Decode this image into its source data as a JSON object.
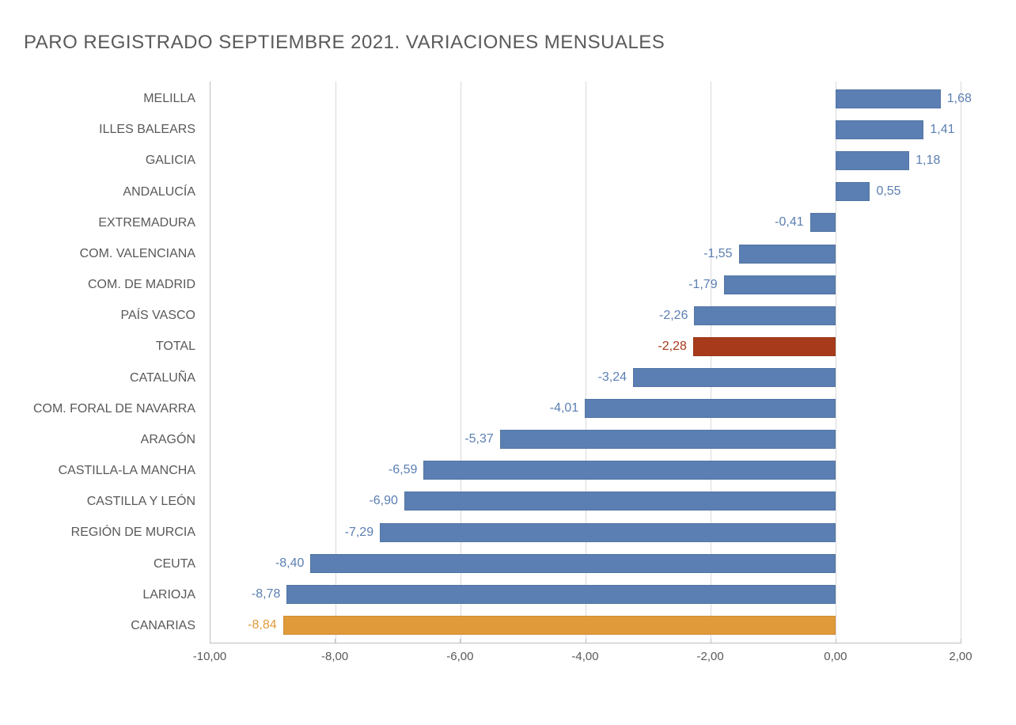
{
  "chart": {
    "type": "bar-horizontal",
    "title": "PARO REGISTRADO SEPTIEMBRE 2021. VARIACIONES MENSUALES",
    "title_color": "#5a5a5a",
    "title_fontsize": 24,
    "background_color": "#ffffff",
    "grid_color": "#d9d9d9",
    "axis_color": "#bfbfbf",
    "label_color": "#595959",
    "label_fontsize": 16,
    "xlim_min": -10.0,
    "xlim_max": 2.0,
    "xtick_step": 2.0,
    "xticks": [
      "-10,00",
      "-8,00",
      "-6,00",
      "-4,00",
      "-2,00",
      "0,00",
      "2,00"
    ],
    "bar_height_ratio": 0.62,
    "default_bar_color": "#5b7fb2",
    "items": [
      {
        "name": "MELILLA",
        "value": 1.68,
        "value_label": "1,68",
        "bar_color": "#5b7fb2",
        "label_color": "#5b7fb2"
      },
      {
        "name": "ILLES BALEARS",
        "value": 1.41,
        "value_label": "1,41",
        "bar_color": "#5b7fb2",
        "label_color": "#5b7fb2"
      },
      {
        "name": "GALICIA",
        "value": 1.18,
        "value_label": "1,18",
        "bar_color": "#5b7fb2",
        "label_color": "#5b7fb2"
      },
      {
        "name": "ANDALUCÍA",
        "value": 0.55,
        "value_label": "0,55",
        "bar_color": "#5b7fb2",
        "label_color": "#5b7fb2"
      },
      {
        "name": "EXTREMADURA",
        "value": -0.41,
        "value_label": "-0,41",
        "bar_color": "#5b7fb2",
        "label_color": "#5b7fb2"
      },
      {
        "name": "COM. VALENCIANA",
        "value": -1.55,
        "value_label": "-1,55",
        "bar_color": "#5b7fb2",
        "label_color": "#5b7fb2"
      },
      {
        "name": "COM. DE MADRID",
        "value": -1.79,
        "value_label": "-1,79",
        "bar_color": "#5b7fb2",
        "label_color": "#5b7fb2"
      },
      {
        "name": "PAÍS VASCO",
        "value": -2.26,
        "value_label": "-2,26",
        "bar_color": "#5b7fb2",
        "label_color": "#5b7fb2"
      },
      {
        "name": "TOTAL",
        "value": -2.28,
        "value_label": "-2,28",
        "bar_color": "#a63a1b",
        "label_color": "#a63a1b"
      },
      {
        "name": "CATALUÑA",
        "value": -3.24,
        "value_label": "-3,24",
        "bar_color": "#5b7fb2",
        "label_color": "#5b7fb2"
      },
      {
        "name": "COM. FORAL DE NAVARRA",
        "value": -4.01,
        "value_label": "-4,01",
        "bar_color": "#5b7fb2",
        "label_color": "#5b7fb2"
      },
      {
        "name": "ARAGÓN",
        "value": -5.37,
        "value_label": "-5,37",
        "bar_color": "#5b7fb2",
        "label_color": "#5b7fb2"
      },
      {
        "name": "CASTILLA-LA MANCHA",
        "value": -6.59,
        "value_label": "-6,59",
        "bar_color": "#5b7fb2",
        "label_color": "#5b7fb2"
      },
      {
        "name": "CASTILLA Y LEÓN",
        "value": -6.9,
        "value_label": "-6,90",
        "bar_color": "#5b7fb2",
        "label_color": "#5b7fb2"
      },
      {
        "name": "REGIÓN DE MURCIA",
        "value": -7.29,
        "value_label": "-7,29",
        "bar_color": "#5b7fb2",
        "label_color": "#5b7fb2"
      },
      {
        "name": "CEUTA",
        "value": -8.4,
        "value_label": "-8,40",
        "bar_color": "#5b7fb2",
        "label_color": "#5b7fb2"
      },
      {
        "name": "LARIOJA",
        "value": -8.78,
        "value_label": "-8,78",
        "bar_color": "#5b7fb2",
        "label_color": "#5b7fb2"
      },
      {
        "name": "CANARIAS",
        "value": -8.84,
        "value_label": "-8,84",
        "bar_color": "#e09a3a",
        "label_color": "#e09a3a"
      }
    ]
  }
}
